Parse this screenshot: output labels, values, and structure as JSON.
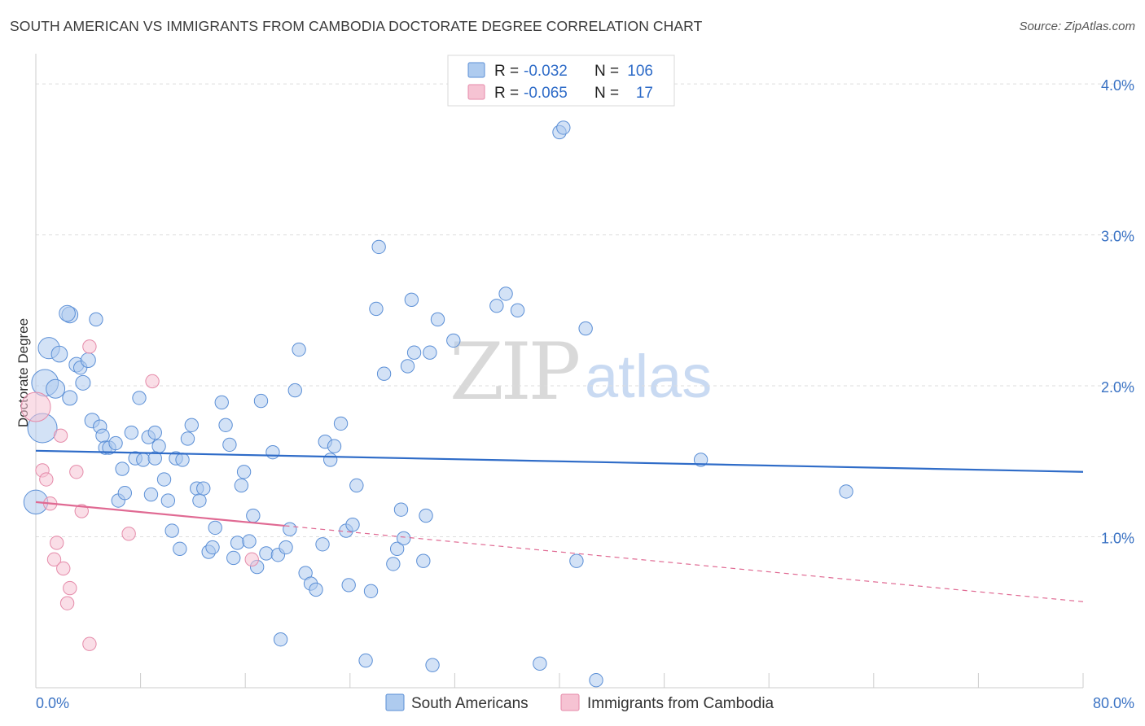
{
  "title": "SOUTH AMERICAN VS IMMIGRANTS FROM CAMBODIA DOCTORATE DEGREE CORRELATION CHART",
  "source": "Source: ZipAtlas.com",
  "watermark": {
    "zip": "ZIP",
    "atlas": "atlas"
  },
  "legend": {
    "rows": [
      {
        "r_label": "R = ",
        "r_value": "-0.032",
        "n_label": "N = ",
        "n_value": "106"
      },
      {
        "r_label": "R = ",
        "r_value": "-0.065",
        "n_label": "N = ",
        "n_value": "17"
      }
    ]
  },
  "colors": {
    "south_american_fill": "#aecbef",
    "south_american_stroke": "#5b8fd6",
    "south_american_line": "#2f6cc8",
    "cambodia_fill": "#f6c3d3",
    "cambodia_stroke": "#e58aa9",
    "cambodia_line": "#e06a93",
    "grid": "#dddddd",
    "axis_text": "#3b73c4"
  },
  "chart_data": {
    "type": "scatter",
    "title": "SOUTH AMERICAN VS IMMIGRANTS FROM CAMBODIA DOCTORATE DEGREE CORRELATION CHART",
    "xlabel": "",
    "ylabel": "Doctorate Degree",
    "xlim": [
      0,
      80
    ],
    "ylim": [
      0,
      4.2
    ],
    "x_tick_labels": [
      "0.0%",
      "80.0%"
    ],
    "y_ticks": [
      1.0,
      2.0,
      3.0,
      4.0
    ],
    "y_tick_labels": [
      "1.0%",
      "2.0%",
      "3.0%",
      "4.0%"
    ],
    "grid": "horizontal dashed",
    "legend_placement": "bottom-center",
    "series": [
      {
        "name": "South Americans",
        "trend": {
          "x": [
            0,
            80
          ],
          "y": [
            1.57,
            1.43
          ]
        },
        "points": [
          [
            0.0,
            1.23,
            18
          ],
          [
            0.5,
            1.72,
            22
          ],
          [
            0.7,
            2.02,
            20
          ],
          [
            1.0,
            2.25,
            16
          ],
          [
            1.5,
            1.98,
            14
          ],
          [
            1.8,
            2.21,
            12
          ],
          [
            2.6,
            2.47,
            12
          ],
          [
            2.4,
            2.48,
            12
          ],
          [
            2.6,
            1.92,
            11
          ],
          [
            3.1,
            2.14,
            11
          ],
          [
            3.4,
            2.12,
            10
          ],
          [
            3.6,
            2.02,
            11
          ],
          [
            4.0,
            2.17,
            11
          ],
          [
            4.3,
            1.77,
            11
          ],
          [
            4.6,
            2.44,
            10
          ],
          [
            4.9,
            1.73,
            10
          ],
          [
            5.1,
            1.67,
            10
          ],
          [
            5.3,
            1.59,
            10
          ],
          [
            5.6,
            1.59,
            10
          ],
          [
            6.1,
            1.62,
            10
          ],
          [
            6.3,
            1.24,
            10
          ],
          [
            6.6,
            1.45,
            10
          ],
          [
            6.8,
            1.29,
            10
          ],
          [
            7.3,
            1.69,
            10
          ],
          [
            7.6,
            1.52,
            10
          ],
          [
            7.9,
            1.92,
            10
          ],
          [
            8.2,
            1.51,
            10
          ],
          [
            8.6,
            1.66,
            10
          ],
          [
            8.8,
            1.28,
            10
          ],
          [
            9.1,
            1.69,
            10
          ],
          [
            9.4,
            1.6,
            10
          ],
          [
            9.8,
            1.38,
            10
          ],
          [
            10.1,
            1.24,
            10
          ],
          [
            10.4,
            1.04,
            10
          ],
          [
            10.7,
            1.52,
            10
          ],
          [
            11.0,
            0.92,
            10
          ],
          [
            11.2,
            1.51,
            10
          ],
          [
            11.6,
            1.65,
            10
          ],
          [
            11.9,
            1.74,
            10
          ],
          [
            12.3,
            1.32,
            10
          ],
          [
            12.5,
            1.24,
            10
          ],
          [
            12.8,
            1.32,
            10
          ],
          [
            13.2,
            0.9,
            10
          ],
          [
            13.5,
            0.93,
            10
          ],
          [
            13.7,
            1.06,
            10
          ],
          [
            14.2,
            1.89,
            10
          ],
          [
            14.5,
            1.74,
            10
          ],
          [
            14.8,
            1.61,
            10
          ],
          [
            15.1,
            0.86,
            10
          ],
          [
            15.4,
            0.96,
            10
          ],
          [
            15.7,
            1.34,
            10
          ],
          [
            15.9,
            1.43,
            10
          ],
          [
            16.3,
            0.97,
            10
          ],
          [
            16.6,
            1.14,
            10
          ],
          [
            16.9,
            0.8,
            10
          ],
          [
            17.2,
            1.9,
            10
          ],
          [
            17.6,
            0.89,
            10
          ],
          [
            18.1,
            1.56,
            10
          ],
          [
            18.5,
            0.88,
            10
          ],
          [
            19.1,
            0.93,
            10
          ],
          [
            19.4,
            1.05,
            10
          ],
          [
            19.8,
            1.97,
            10
          ],
          [
            20.1,
            2.24,
            10
          ],
          [
            20.6,
            0.76,
            10
          ],
          [
            21.0,
            0.69,
            10
          ],
          [
            21.4,
            0.65,
            10
          ],
          [
            21.9,
            0.95,
            10
          ],
          [
            22.1,
            1.63,
            10
          ],
          [
            22.5,
            1.51,
            10
          ],
          [
            22.8,
            1.6,
            10
          ],
          [
            23.3,
            1.75,
            10
          ],
          [
            23.7,
            1.04,
            10
          ],
          [
            23.9,
            0.68,
            10
          ],
          [
            24.2,
            1.08,
            10
          ],
          [
            24.5,
            1.34,
            10
          ],
          [
            25.2,
            0.18,
            10
          ],
          [
            25.6,
            0.64,
            10
          ],
          [
            26.0,
            2.51,
            10
          ],
          [
            26.2,
            2.92,
            10
          ],
          [
            26.6,
            2.08,
            10
          ],
          [
            27.3,
            0.82,
            10
          ],
          [
            27.6,
            0.92,
            10
          ],
          [
            27.9,
            1.18,
            10
          ],
          [
            28.1,
            0.99,
            10
          ],
          [
            28.4,
            2.13,
            10
          ],
          [
            28.9,
            2.22,
            10
          ],
          [
            28.7,
            2.57,
            10
          ],
          [
            29.6,
            0.84,
            10
          ],
          [
            29.8,
            1.14,
            10
          ],
          [
            30.1,
            2.22,
            10
          ],
          [
            30.3,
            0.15,
            10
          ],
          [
            30.7,
            2.44,
            10
          ],
          [
            31.9,
            2.3,
            10
          ],
          [
            35.2,
            2.53,
            10
          ],
          [
            35.9,
            2.61,
            10
          ],
          [
            36.8,
            2.5,
            10
          ],
          [
            38.5,
            0.16,
            10
          ],
          [
            40.0,
            3.68,
            10
          ],
          [
            40.3,
            3.71,
            10
          ],
          [
            41.3,
            0.84,
            10
          ],
          [
            42.0,
            2.38,
            10
          ],
          [
            42.8,
            0.05,
            10
          ],
          [
            18.7,
            0.32,
            10
          ],
          [
            50.8,
            1.51,
            10
          ],
          [
            61.9,
            1.3,
            10
          ],
          [
            9.1,
            1.52,
            10
          ]
        ]
      },
      {
        "name": "Immigrants from Cambodia",
        "trend": {
          "x": [
            0,
            80
          ],
          "y": [
            1.23,
            0.57
          ]
        },
        "trend_solid_until": 19,
        "points": [
          [
            0.0,
            1.86,
            22
          ],
          [
            0.5,
            1.44,
            10
          ],
          [
            0.8,
            1.38,
            10
          ],
          [
            1.1,
            1.22,
            10
          ],
          [
            1.4,
            0.85,
            10
          ],
          [
            1.6,
            0.96,
            10
          ],
          [
            1.9,
            1.67,
            10
          ],
          [
            2.1,
            0.79,
            10
          ],
          [
            2.4,
            0.56,
            10
          ],
          [
            2.6,
            0.66,
            10
          ],
          [
            3.1,
            1.43,
            10
          ],
          [
            3.5,
            1.17,
            10
          ],
          [
            4.1,
            2.26,
            10
          ],
          [
            4.1,
            0.29,
            10
          ],
          [
            7.1,
            1.02,
            10
          ],
          [
            8.9,
            2.03,
            10
          ],
          [
            16.5,
            0.85,
            10
          ]
        ]
      }
    ]
  }
}
